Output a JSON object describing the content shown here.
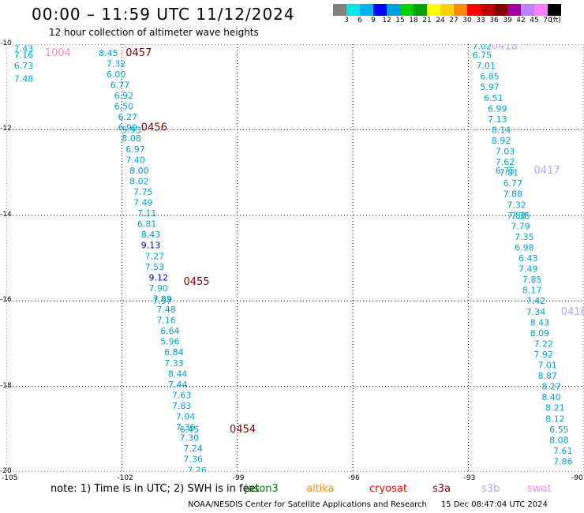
{
  "header": {
    "title": "00:00 – 11:59 UTC 11/12/2024",
    "subtitle": "12 hour collection of altimeter wave heights"
  },
  "legend": {
    "colors": [
      "#808080",
      "#00e5e5",
      "#00b0f0",
      "#0000ff",
      "#00a0e0",
      "#00d000",
      "#00a000",
      "#ffff00",
      "#ffd000",
      "#ff8c00",
      "#ff0000",
      "#c00000",
      "#800000",
      "#a000a0",
      "#c080ff",
      "#ff80ff",
      "#000000"
    ],
    "ticks": [
      "3",
      "6",
      "9",
      "12",
      "15",
      "18",
      "21",
      "24",
      "27",
      "30",
      "33",
      "36",
      "39",
      "42",
      "45",
      "70",
      "(ft)"
    ]
  },
  "chart_data": {
    "type": "scatter",
    "xlim": [
      -105,
      -90
    ],
    "ylim": [
      -20,
      -10
    ],
    "x_ticks": [
      "-105",
      "-102",
      "-99",
      "-96",
      "-93",
      "-90"
    ],
    "y_ticks": [
      "-10",
      "-12",
      "-14",
      "-16",
      "-18",
      "-20"
    ],
    "grid": true,
    "tracks": [
      {
        "label": "1004",
        "label_xy": [
          -104.0,
          -10.2
        ],
        "color": "#ff80c0",
        "points": [
          [
            -104.8,
            -10.1,
            "7.43"
          ],
          [
            -104.8,
            -10.25,
            "7.16"
          ],
          [
            -104.8,
            -10.5,
            "6.73"
          ],
          [
            -104.8,
            -10.8,
            "7.48"
          ]
        ]
      },
      {
        "label": "0457",
        "label_xy": [
          -101.9,
          -10.2
        ],
        "color": "#800000",
        "points": [
          [
            -102.6,
            -10.2,
            "8.45"
          ],
          [
            -102.4,
            -10.45,
            "7.32"
          ],
          [
            -102.4,
            -10.7,
            "6.00"
          ],
          [
            -102.3,
            -10.95,
            "6.77"
          ],
          [
            -102.2,
            -11.2,
            "6.92"
          ],
          [
            -102.2,
            -11.45,
            "6.50"
          ],
          [
            -102.1,
            -11.7,
            "6.27"
          ],
          [
            -102.1,
            -11.95,
            "6.90"
          ],
          [
            -102.0,
            -12.0,
            "5.93"
          ],
          [
            -102.0,
            -12.2,
            "8.08"
          ],
          [
            -101.9,
            -12.45,
            "6.97"
          ],
          [
            -101.9,
            -12.7,
            "7.40"
          ],
          [
            -101.8,
            -12.95,
            "8.00"
          ],
          [
            -101.8,
            -13.2,
            "8.02"
          ],
          [
            -101.7,
            -13.45,
            "7.75"
          ],
          [
            -101.7,
            -13.7,
            "7.49"
          ],
          [
            -101.6,
            -13.95,
            "7.11"
          ],
          [
            -101.6,
            -14.2,
            "6.81"
          ],
          [
            -101.5,
            -14.45,
            "8.43"
          ],
          [
            -101.5,
            -14.7,
            "9.13"
          ],
          [
            -101.4,
            -14.95,
            "7.27"
          ],
          [
            -101.4,
            -15.2,
            "7.53"
          ],
          [
            -101.3,
            -15.45,
            "9.12"
          ],
          [
            -101.3,
            -15.7,
            "7.90"
          ],
          [
            -101.2,
            -15.95,
            "7.89"
          ],
          [
            -101.2,
            -16.0,
            "7.57"
          ],
          [
            -101.1,
            -16.2,
            "7.48"
          ],
          [
            -101.1,
            -16.45,
            "7.16"
          ],
          [
            -101.0,
            -16.7,
            "6.64"
          ],
          [
            -101.0,
            -16.95,
            "5.96"
          ],
          [
            -100.9,
            -17.2,
            "6.84"
          ],
          [
            -100.9,
            -17.45,
            "7.33"
          ],
          [
            -100.8,
            -17.7,
            "8.44"
          ],
          [
            -100.8,
            -17.95,
            "7.44"
          ],
          [
            -100.7,
            -18.2,
            "7.63"
          ],
          [
            -100.7,
            -18.45,
            "7.83"
          ],
          [
            -100.6,
            -18.7,
            "7.04"
          ],
          [
            -100.6,
            -18.95,
            "7.36"
          ],
          [
            -100.5,
            -19.0,
            "6.45"
          ],
          [
            -100.5,
            -19.2,
            "7.30"
          ],
          [
            -100.4,
            -19.45,
            "7.24"
          ],
          [
            -100.4,
            -19.7,
            "7.36"
          ],
          [
            -100.3,
            -19.95,
            "7.26"
          ]
        ]
      },
      {
        "label": "0456",
        "label_xy": [
          -101.5,
          -11.95
        ],
        "color": "#800000",
        "points": []
      },
      {
        "label": "0455",
        "label_xy": [
          -100.4,
          -15.55
        ],
        "color": "#800000",
        "points": []
      },
      {
        "label": "0454",
        "label_xy": [
          -99.2,
          -19.0
        ],
        "color": "#800000",
        "points": []
      },
      {
        "label": "0418",
        "label_xy": [
          -92.4,
          -10.05
        ],
        "color": "#c0a0ff",
        "points": [
          [
            -92.9,
            -10.05,
            "7.02"
          ],
          [
            -92.9,
            -10.25,
            "6.75"
          ],
          [
            -92.8,
            -10.5,
            "7.01"
          ],
          [
            -92.7,
            -10.75,
            "6.85"
          ],
          [
            -92.7,
            -11.0,
            "5.97"
          ],
          [
            -92.6,
            -11.25,
            "6.51"
          ],
          [
            -92.5,
            -11.5,
            "6.99"
          ],
          [
            -92.5,
            -11.75,
            "7.13"
          ],
          [
            -92.4,
            -12.0,
            "8.14"
          ],
          [
            -92.4,
            -12.25,
            "8.92"
          ],
          [
            -92.3,
            -12.5,
            "7.03"
          ],
          [
            -92.3,
            -12.75,
            "7.62"
          ],
          [
            -92.3,
            -12.95,
            "6.75"
          ],
          [
            -92.2,
            -13.0,
            "7.81"
          ],
          [
            -92.1,
            -13.25,
            "6.77"
          ],
          [
            -92.1,
            -13.5,
            "7.88"
          ],
          [
            -92.0,
            -13.75,
            "7.32"
          ],
          [
            -92.0,
            -14.0,
            "7.80"
          ],
          [
            -91.9,
            -14.0,
            "7.35"
          ],
          [
            -91.9,
            -14.25,
            "7.79"
          ],
          [
            -91.8,
            -14.5,
            "7.35"
          ],
          [
            -91.8,
            -14.75,
            "6.98"
          ],
          [
            -91.7,
            -15.0,
            "6.43"
          ],
          [
            -91.7,
            -15.25,
            "7.49"
          ],
          [
            -91.6,
            -15.5,
            "7.85"
          ],
          [
            -91.6,
            -15.75,
            "8.17"
          ],
          [
            -91.5,
            -16.0,
            "7.42"
          ],
          [
            -91.5,
            -16.25,
            "7.34"
          ],
          [
            -91.4,
            -16.5,
            "8.43"
          ],
          [
            -91.4,
            -16.75,
            "8.09"
          ],
          [
            -91.3,
            -17.0,
            "7.22"
          ],
          [
            -91.3,
            -17.25,
            "7.92"
          ],
          [
            -91.2,
            -17.5,
            "7.01"
          ],
          [
            -91.2,
            -17.75,
            "8.87"
          ],
          [
            -91.1,
            -18.0,
            "8.27"
          ],
          [
            -91.1,
            -18.25,
            "8.40"
          ],
          [
            -91.0,
            -18.5,
            "8.21"
          ],
          [
            -91.0,
            -18.75,
            "8.12"
          ],
          [
            -90.9,
            -19.0,
            "6.55"
          ],
          [
            -90.9,
            -19.25,
            "8.08"
          ],
          [
            -90.8,
            -19.5,
            "7.61"
          ],
          [
            -90.8,
            -19.75,
            "7.86"
          ]
        ]
      },
      {
        "label": "0417",
        "label_xy": [
          -91.3,
          -12.95
        ],
        "color": "#c0a0ff",
        "points": []
      },
      {
        "label": "0416",
        "label_xy": [
          -90.6,
          -16.25
        ],
        "color": "#c0a0ff",
        "points": []
      }
    ]
  },
  "note": {
    "prefix": "note:  1) Time is in UTC;  2) SWH is in feet",
    "satellites": [
      {
        "name": "jason3",
        "color": "#008000"
      },
      {
        "name": "altika",
        "color": "#ff8c00"
      },
      {
        "name": "cryosat",
        "color": "#ff0000"
      },
      {
        "name": "s3a",
        "color": "#800000"
      },
      {
        "name": "s3b",
        "color": "#c0a0ff"
      },
      {
        "name": "swot",
        "color": "#ff80ff"
      }
    ]
  },
  "footer": {
    "credit": "NOAA/NESDIS Center for Satellite Applications and Research",
    "timestamp": "15 Dec 08:47:04 UTC 2024"
  }
}
